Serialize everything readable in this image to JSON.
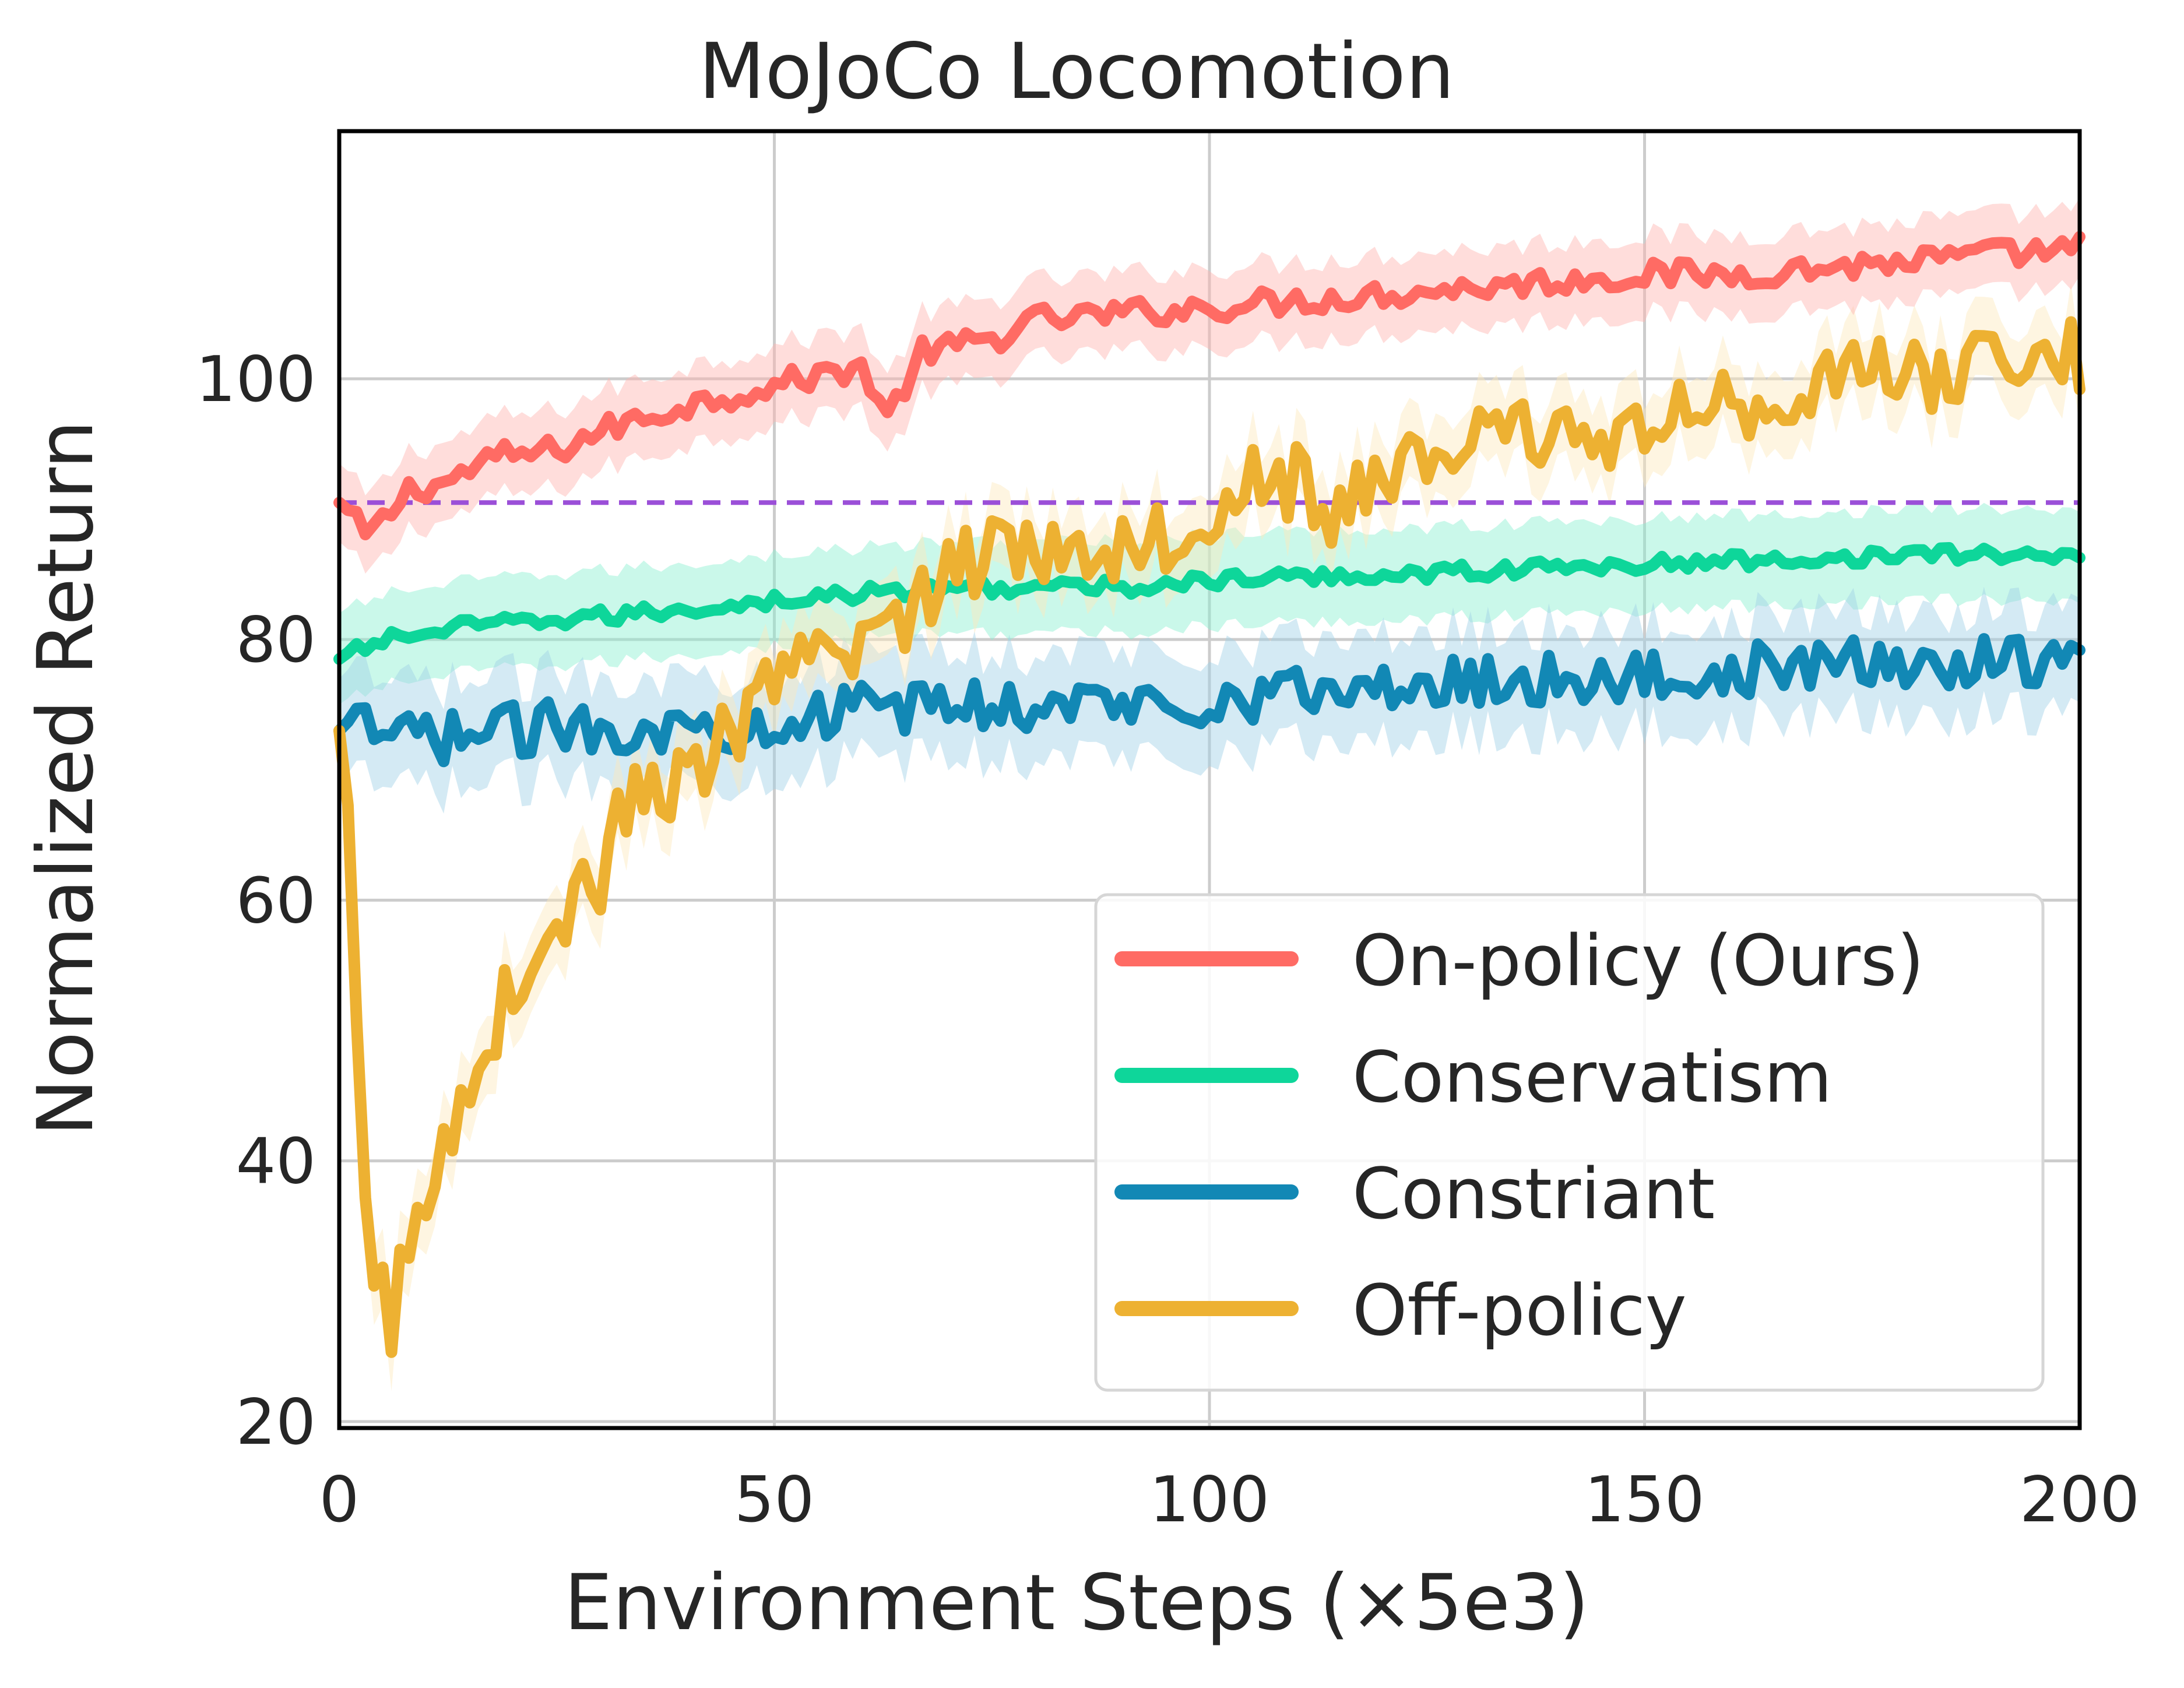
{
  "chart_data": {
    "type": "line",
    "title": "MoJoCo Locomotion",
    "xlabel": "Environment Steps (×5e3)",
    "ylabel": "Normalized Return",
    "xlim": [
      0,
      200
    ],
    "ylim": [
      19.5,
      119
    ],
    "xticks": [
      0,
      50,
      100,
      150,
      200
    ],
    "xtick_labels": [
      "0",
      "50",
      "100",
      "150",
      "200"
    ],
    "yticks": [
      20,
      40,
      60,
      80,
      100
    ],
    "ytick_labels": [
      "20",
      "40",
      "60",
      "80",
      "100"
    ],
    "grid": true,
    "legend_position": "lower-right",
    "reference_line": {
      "y": 90.5,
      "style": "dashed",
      "color": "#9b4fd8"
    },
    "series": [
      {
        "name": "On-policy (Ours)",
        "color": "#ff6b64",
        "band_color": "#ffb3b0",
        "band_width": 3,
        "anchors": [
          [
            0,
            90.5
          ],
          [
            3,
            88
          ],
          [
            5,
            89
          ],
          [
            8,
            91.5
          ],
          [
            12,
            92
          ],
          [
            18,
            94
          ],
          [
            25,
            94.5
          ],
          [
            30,
            96
          ],
          [
            40,
            98
          ],
          [
            50,
            99.5
          ],
          [
            60,
            101
          ],
          [
            63,
            97
          ],
          [
            67,
            102
          ],
          [
            75,
            103
          ],
          [
            80,
            104.5
          ],
          [
            90,
            105
          ],
          [
            100,
            105.5
          ],
          [
            110,
            106
          ],
          [
            120,
            106.5
          ],
          [
            130,
            107
          ],
          [
            140,
            107.5
          ],
          [
            150,
            108
          ],
          [
            160,
            108
          ],
          [
            170,
            108.5
          ],
          [
            180,
            109
          ],
          [
            190,
            109.5
          ],
          [
            200,
            110
          ]
        ],
        "noise": 1.0
      },
      {
        "name": "Conservatism",
        "color": "#0ed69a",
        "band_color": "#8af0d0",
        "band_width": 3.5,
        "anchors": [
          [
            0,
            78.5
          ],
          [
            5,
            80
          ],
          [
            15,
            81
          ],
          [
            25,
            81.5
          ],
          [
            35,
            82
          ],
          [
            50,
            83
          ],
          [
            60,
            83.5
          ],
          [
            70,
            84
          ],
          [
            80,
            84
          ],
          [
            90,
            84
          ],
          [
            100,
            84.5
          ],
          [
            120,
            85
          ],
          [
            140,
            85.5
          ],
          [
            160,
            86
          ],
          [
            180,
            86.5
          ],
          [
            200,
            86.5
          ]
        ],
        "noise": 0.6
      },
      {
        "name": "Constriant",
        "color": "#1288b5",
        "band_color": "#9fd0e6",
        "band_width": 4,
        "anchors": [
          [
            0,
            73
          ],
          [
            10,
            72.5
          ],
          [
            20,
            73
          ],
          [
            30,
            73.5
          ],
          [
            40,
            73
          ],
          [
            50,
            74
          ],
          [
            60,
            74.5
          ],
          [
            70,
            75
          ],
          [
            80,
            75
          ],
          [
            90,
            75
          ],
          [
            100,
            75.5
          ],
          [
            110,
            76
          ],
          [
            120,
            76
          ],
          [
            130,
            77
          ],
          [
            140,
            77
          ],
          [
            150,
            77
          ],
          [
            160,
            77.5
          ],
          [
            170,
            78
          ],
          [
            180,
            78
          ],
          [
            190,
            78.5
          ],
          [
            200,
            78.5
          ]
        ],
        "noise": 2.0
      },
      {
        "name": "Off-policy",
        "color": "#edb132",
        "band_color": "#fde8bd",
        "band_width": 3,
        "anchors": [
          [
            0,
            73
          ],
          [
            1,
            66
          ],
          [
            2,
            48
          ],
          [
            3,
            36
          ],
          [
            4,
            32
          ],
          [
            6,
            28
          ],
          [
            8,
            33
          ],
          [
            10,
            37
          ],
          [
            13,
            43
          ],
          [
            15,
            47
          ],
          [
            18,
            51
          ],
          [
            22,
            55
          ],
          [
            26,
            59
          ],
          [
            30,
            62
          ],
          [
            33,
            67
          ],
          [
            36,
            70
          ],
          [
            40,
            68
          ],
          [
            45,
            73
          ],
          [
            50,
            76
          ],
          [
            55,
            78
          ],
          [
            60,
            80
          ],
          [
            65,
            82
          ],
          [
            70,
            85
          ],
          [
            75,
            87
          ],
          [
            80,
            88
          ],
          [
            85,
            86
          ],
          [
            90,
            88
          ],
          [
            95,
            88
          ],
          [
            100,
            90
          ],
          [
            105,
            93
          ],
          [
            110,
            92
          ],
          [
            115,
            89
          ],
          [
            120,
            93
          ],
          [
            125,
            94
          ],
          [
            130,
            95
          ],
          [
            140,
            96
          ],
          [
            150,
            96
          ],
          [
            160,
            98
          ],
          [
            170,
            100
          ],
          [
            180,
            100
          ],
          [
            190,
            101
          ],
          [
            200,
            102
          ]
        ],
        "noise": 3.0
      }
    ]
  }
}
